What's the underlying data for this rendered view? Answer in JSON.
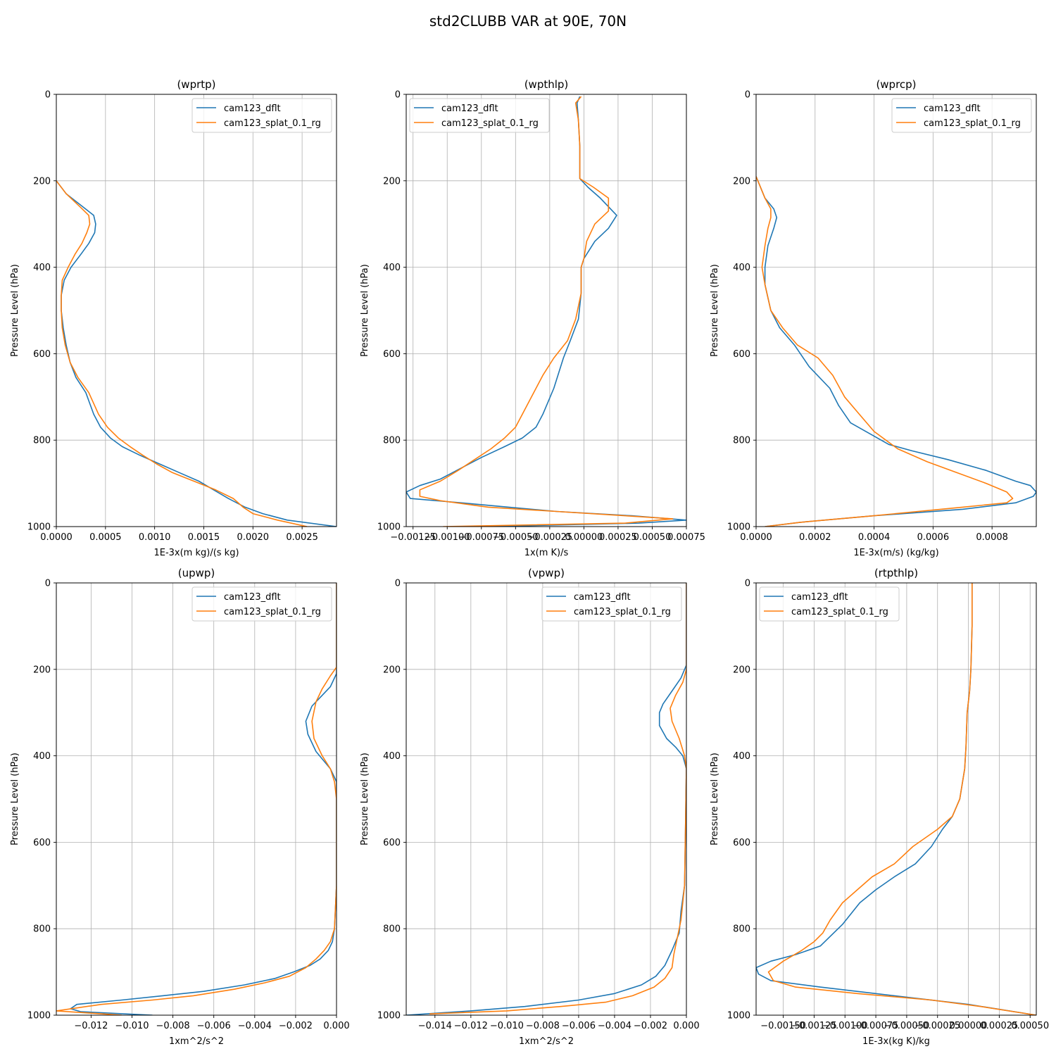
{
  "figure": {
    "title": "std2CLUBB VAR at 90E, 70N",
    "series_colors": {
      "cam123_dflt": "#1f77b4",
      "cam123_splat_0.1_rg": "#ff7f0e"
    }
  },
  "chart_data": [
    {
      "type": "line",
      "title": "(wprtp)",
      "xlabel": "1E-3x(m kg)/(s kg)",
      "ylabel": "Pressure Level (hPa)",
      "xlim": [
        0,
        0.00285
      ],
      "ylim": [
        1000,
        0
      ],
      "xticks": [
        0,
        0.0005,
        0.001,
        0.0015,
        0.002,
        0.0025
      ],
      "xtick_labels": [
        "0.0000",
        "0.0005",
        "0.0010",
        "0.0015",
        "0.0020",
        "0.0025"
      ],
      "yticks": [
        0,
        200,
        400,
        600,
        800,
        1000
      ],
      "grid": true,
      "legend": "upper right",
      "series": [
        {
          "name": "cam123_dflt",
          "color": "#1f77b4",
          "x": [
            0,
            0.0001,
            0.00028,
            0.00038,
            0.0004,
            0.00039,
            0.00033,
            0.00025,
            0.00015,
            8e-05,
            5e-05,
            5e-05,
            7e-05,
            0.0001,
            0.00014,
            0.0002,
            0.0003,
            0.00038,
            0.00045,
            0.00055,
            0.00067,
            0.00085,
            0.00105,
            0.00125,
            0.00145,
            0.0016,
            0.00175,
            0.00192,
            0.0021,
            0.00235,
            0.00285
          ],
          "y": [
            200,
            230,
            262,
            280,
            300,
            320,
            345,
            370,
            400,
            430,
            465,
            500,
            540,
            580,
            620,
            655,
            690,
            740,
            770,
            795,
            815,
            835,
            855,
            875,
            895,
            915,
            935,
            955,
            970,
            985,
            1000
          ]
        },
        {
          "name": "cam123_splat_0.1_rg",
          "color": "#ff7f0e",
          "x": [
            0,
            0.0001,
            0.00025,
            0.00033,
            0.00034,
            0.00031,
            0.00026,
            0.00019,
            0.00012,
            6e-05,
            5e-05,
            5e-05,
            6e-05,
            9e-05,
            0.00014,
            0.00022,
            0.00033,
            0.00043,
            0.00052,
            0.00063,
            0.00075,
            0.00088,
            0.00102,
            0.00118,
            0.0014,
            0.00162,
            0.0018,
            0.0019,
            0.002,
            0.00225,
            0.00255
          ],
          "y": [
            200,
            230,
            262,
            280,
            300,
            320,
            345,
            370,
            400,
            430,
            465,
            500,
            540,
            580,
            620,
            655,
            690,
            740,
            770,
            795,
            815,
            835,
            855,
            875,
            895,
            915,
            935,
            955,
            970,
            985,
            1000
          ]
        }
      ]
    },
    {
      "type": "line",
      "title": "(wpthlp)",
      "xlabel": "1x(m K)/s",
      "ylabel": "Pressure Level (hPa)",
      "xlim": [
        -0.0013,
        0.00075
      ],
      "ylim": [
        1000,
        0
      ],
      "xticks": [
        -0.00125,
        -0.001,
        -0.00075,
        -0.0005,
        -0.00025,
        0,
        0.00025,
        0.0005,
        0.00075
      ],
      "xtick_labels": [
        "−0.00125",
        "−0.00100",
        "−0.00075",
        "−0.00050",
        "−0.00025",
        "0.00000",
        "0.00025",
        "0.00050",
        "0.00075"
      ],
      "yticks": [
        0,
        200,
        400,
        600,
        800,
        1000
      ],
      "grid": true,
      "legend": "upper left",
      "series": [
        {
          "name": "cam123_dflt",
          "color": "#1f77b4",
          "x": [
            -3e-05,
            -5e-05,
            -4e-05,
            -3e-05,
            -3e-05,
            -3e-05,
            3e-05,
            0.00012,
            0.00024,
            0.00018,
            8e-05,
            0.0,
            -2e-05,
            -2e-05,
            -4e-05,
            -0.0001,
            -0.00015,
            -0.00022,
            -0.0003,
            -0.00035,
            -0.00045,
            -0.00058,
            -0.00075,
            -0.0009,
            -0.00105,
            -0.0012,
            -0.0013,
            -0.00127,
            -0.0009,
            -0.00055,
            -0.0002,
            0.00035,
            0.00075,
            0.0004,
            -0.0007
          ],
          "y": [
            5,
            20,
            60,
            120,
            160,
            195,
            215,
            240,
            280,
            310,
            340,
            380,
            400,
            460,
            520,
            570,
            610,
            680,
            740,
            770,
            795,
            815,
            840,
            865,
            890,
            905,
            920,
            935,
            945,
            955,
            965,
            975,
            985,
            992,
            1000
          ]
        },
        {
          "name": "cam123_splat_0.1_rg",
          "color": "#ff7f0e",
          "x": [
            -2e-05,
            -6e-05,
            -4e-05,
            -3e-05,
            -3e-05,
            -3e-05,
            7e-05,
            0.00018,
            0.00018,
            8e-05,
            2e-05,
            0.0,
            -2e-05,
            -2e-05,
            -6e-05,
            -0.00012,
            -0.00022,
            -0.0003,
            -0.00035,
            -0.00045,
            -0.0005,
            -0.00058,
            -0.00068,
            -0.0008,
            -0.00092,
            -0.00105,
            -0.0012,
            -0.0012,
            -0.00105,
            -0.0007,
            -0.0002,
            0.0003,
            0.00065,
            0.0003,
            -0.00103
          ],
          "y": [
            5,
            20,
            60,
            120,
            160,
            195,
            215,
            240,
            270,
            300,
            340,
            380,
            400,
            460,
            520,
            570,
            610,
            650,
            680,
            740,
            770,
            795,
            820,
            845,
            870,
            895,
            915,
            930,
            940,
            955,
            965,
            975,
            982,
            992,
            1000
          ]
        }
      ]
    },
    {
      "type": "line",
      "title": "(wprcp)",
      "xlabel": "1E-3x(m/s) (kg/kg)",
      "ylabel": "Pressure Level (hPa)",
      "xlim": [
        0,
        0.00095
      ],
      "ylim": [
        1000,
        0
      ],
      "xticks": [
        0,
        0.0002,
        0.0004,
        0.0006,
        0.0008
      ],
      "xtick_labels": [
        "0.0000",
        "0.0002",
        "0.0004",
        "0.0006",
        "0.0008"
      ],
      "yticks": [
        0,
        200,
        400,
        600,
        800,
        1000
      ],
      "grid": true,
      "legend": "upper right",
      "series": [
        {
          "name": "cam123_dflt",
          "color": "#1f77b4",
          "x": [
            0,
            3e-05,
            6e-05,
            7e-05,
            6e-05,
            4e-05,
            3e-05,
            3e-05,
            5e-05,
            8e-05,
            0.00013,
            0.00018,
            0.00025,
            0.00028,
            0.00032,
            0.00045,
            0.00053,
            0.00065,
            0.00078,
            0.00088,
            0.00093,
            0.00095,
            0.00094,
            0.00088,
            0.0007,
            0.0004,
            0.00015,
            3e-05
          ],
          "y": [
            190,
            240,
            265,
            285,
            310,
            350,
            400,
            440,
            500,
            540,
            580,
            630,
            680,
            720,
            760,
            810,
            825,
            845,
            870,
            895,
            905,
            920,
            930,
            945,
            960,
            975,
            990,
            1000
          ]
        },
        {
          "name": "cam123_splat_0.1_rg",
          "color": "#ff7f0e",
          "x": [
            0,
            3e-05,
            5e-05,
            5e-05,
            4e-05,
            3e-05,
            2e-05,
            3e-05,
            5e-05,
            9e-05,
            0.00014,
            0.00021,
            0.00026,
            0.0003,
            0.00035,
            0.0004,
            0.00048,
            0.00058,
            0.00068,
            0.00078,
            0.00085,
            0.00087,
            0.00085,
            0.0007,
            0.0004,
            0.00015,
            3e-05
          ],
          "y": [
            190,
            240,
            265,
            285,
            310,
            350,
            400,
            440,
            500,
            540,
            580,
            610,
            650,
            700,
            740,
            780,
            820,
            850,
            875,
            900,
            920,
            935,
            945,
            955,
            975,
            990,
            1000
          ]
        }
      ]
    },
    {
      "type": "line",
      "title": "(upwp)",
      "xlabel": "1xm^2/s^2",
      "ylabel": "Pressure Level (hPa)",
      "xlim": [
        -0.0137,
        0
      ],
      "ylim": [
        1000,
        0
      ],
      "xticks": [
        -0.012,
        -0.01,
        -0.008,
        -0.006,
        -0.004,
        -0.002,
        0
      ],
      "xtick_labels": [
        "−0.012",
        "−0.010",
        "−0.008",
        "−0.006",
        "−0.004",
        "−0.002",
        "0.000"
      ],
      "yticks": [
        0,
        200,
        400,
        600,
        800,
        1000
      ],
      "grid": true,
      "legend": "upper right",
      "series": [
        {
          "name": "cam123_dflt",
          "color": "#1f77b4",
          "x": [
            0,
            0,
            0,
            -0.0003,
            -0.0008,
            -0.0012,
            -0.0015,
            -0.0014,
            -0.001,
            -0.0003,
            0,
            0,
            0,
            -0.0001,
            -0.0002,
            -0.0004,
            -0.0008,
            -0.0013,
            -0.0021,
            -0.003,
            -0.0045,
            -0.0065,
            -0.0085,
            -0.0105,
            -0.0127,
            -0.013,
            -0.0125,
            -0.009
          ],
          "y": [
            0,
            100,
            210,
            240,
            265,
            285,
            320,
            350,
            390,
            430,
            460,
            500,
            700,
            800,
            830,
            850,
            870,
            885,
            900,
            915,
            930,
            945,
            955,
            965,
            975,
            985,
            992,
            1000
          ]
        },
        {
          "name": "cam123_splat_0.1_rg",
          "color": "#ff7f0e",
          "x": [
            0,
            0,
            0,
            -0.0003,
            -0.0007,
            -0.001,
            -0.0012,
            -0.0011,
            -0.0007,
            -0.0003,
            -0.0001,
            0,
            0,
            -0.0001,
            -0.0003,
            -0.0006,
            -0.001,
            -0.0015,
            -0.0023,
            -0.0035,
            -0.005,
            -0.007,
            -0.009,
            -0.0115,
            -0.0137,
            -0.0105
          ],
          "y": [
            0,
            100,
            195,
            215,
            245,
            275,
            320,
            360,
            400,
            430,
            460,
            500,
            700,
            800,
            830,
            850,
            870,
            890,
            910,
            925,
            940,
            955,
            965,
            975,
            990,
            1000
          ]
        }
      ]
    },
    {
      "type": "line",
      "title": "(vpwp)",
      "xlabel": "1xm^2/s^2",
      "ylabel": "Pressure Level (hPa)",
      "xlim": [
        -0.0156,
        0
      ],
      "ylim": [
        1000,
        0
      ],
      "xticks": [
        -0.014,
        -0.012,
        -0.01,
        -0.008,
        -0.006,
        -0.004,
        -0.002,
        0
      ],
      "xtick_labels": [
        "−0.014",
        "−0.012",
        "−0.010",
        "−0.008",
        "−0.006",
        "−0.004",
        "−0.002",
        "0.000"
      ],
      "yticks": [
        0,
        200,
        400,
        600,
        800,
        1000
      ],
      "grid": true,
      "legend": "upper right",
      "series": [
        {
          "name": "cam123_dflt",
          "color": "#1f77b4",
          "x": [
            0,
            0,
            0,
            -0.0003,
            -0.0008,
            -0.0013,
            -0.0015,
            -0.0015,
            -0.0011,
            -0.0006,
            -0.0002,
            0,
            -0.0001,
            -0.0003,
            -0.0004,
            -0.0008,
            -0.0012,
            -0.0017,
            -0.0025,
            -0.004,
            -0.006,
            -0.009,
            -0.012,
            -0.0156
          ],
          "y": [
            0,
            100,
            190,
            220,
            250,
            280,
            300,
            330,
            360,
            380,
            400,
            430,
            700,
            760,
            810,
            850,
            885,
            910,
            930,
            950,
            965,
            980,
            990,
            1000
          ]
        },
        {
          "name": "cam123_splat_0.1_rg",
          "color": "#ff7f0e",
          "x": [
            0,
            0,
            0,
            -0.0002,
            -0.0006,
            -0.0009,
            -0.0008,
            -0.0004,
            -0.0001,
            0,
            -0.0001,
            -0.0003,
            -0.0005,
            -0.0007,
            -0.0008,
            -0.0012,
            -0.0018,
            -0.003,
            -0.0045,
            -0.007,
            -0.01,
            -0.0143
          ],
          "y": [
            0,
            100,
            200,
            230,
            260,
            290,
            320,
            360,
            400,
            430,
            700,
            780,
            820,
            860,
            890,
            915,
            935,
            955,
            970,
            980,
            990,
            997
          ]
        }
      ]
    },
    {
      "type": "line",
      "title": "(rtpthlp)",
      "xlabel": "1E-3x(kg K)/kg",
      "ylabel": "Pressure Level (hPa)",
      "xlim": [
        -0.00172,
        0.00055
      ],
      "ylim": [
        1000,
        0
      ],
      "xticks": [
        -0.0015,
        -0.00125,
        -0.001,
        -0.00075,
        -0.0005,
        -0.00025,
        0,
        0.00025,
        0.0005
      ],
      "xtick_labels": [
        "−0.00150",
        "−0.00125",
        "−0.00100",
        "−0.00075",
        "−0.00050",
        "−0.00025",
        "0.00000",
        "0.00025",
        "0.00050"
      ],
      "yticks": [
        0,
        200,
        400,
        600,
        800,
        1000
      ],
      "grid": true,
      "legend": "upper left",
      "series": [
        {
          "name": "cam123_dflt",
          "color": "#1f77b4",
          "x": [
            3e-05,
            3e-05,
            2e-05,
            1e-05,
            -1e-05,
            -2e-05,
            -3e-05,
            -7e-05,
            -0.00013,
            -0.00021,
            -0.0003,
            -0.00043,
            -0.0006,
            -0.00075,
            -0.00088,
            -0.00102,
            -0.0012,
            -0.0014,
            -0.0016,
            -0.00172,
            -0.0017,
            -0.0016,
            -0.0012,
            -0.0006,
            0.0,
            0.00055
          ],
          "y": [
            0,
            100,
            200,
            250,
            300,
            380,
            430,
            500,
            540,
            570,
            610,
            650,
            680,
            710,
            740,
            790,
            840,
            860,
            875,
            890,
            905,
            920,
            935,
            955,
            975,
            1000
          ]
        },
        {
          "name": "cam123_splat_0.1_rg",
          "color": "#ff7f0e",
          "x": [
            3e-05,
            3e-05,
            2e-05,
            1e-05,
            -1e-05,
            -2e-05,
            -3e-05,
            -7e-05,
            -0.00013,
            -0.00025,
            -0.00045,
            -0.0006,
            -0.00078,
            -0.0009,
            -0.00102,
            -0.00112,
            -0.00118,
            -0.00125,
            -0.00135,
            -0.0015,
            -0.00162,
            -0.00158,
            -0.0014,
            -0.0009,
            -0.0003,
            0.0001,
            0.00055
          ],
          "y": [
            0,
            100,
            200,
            250,
            300,
            380,
            430,
            500,
            540,
            570,
            610,
            650,
            680,
            710,
            740,
            780,
            810,
            830,
            850,
            875,
            900,
            920,
            935,
            950,
            965,
            980,
            1000
          ]
        }
      ]
    }
  ]
}
